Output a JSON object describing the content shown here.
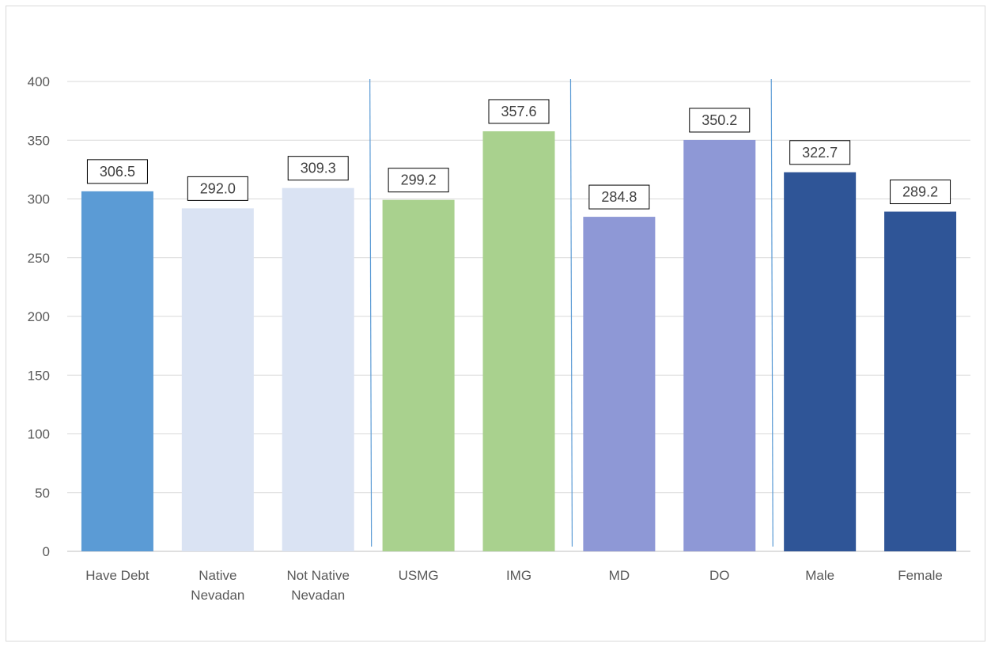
{
  "chart_data": {
    "type": "bar",
    "categories": [
      "Have Debt",
      "Native Nevadan",
      "Not Native Nevadan",
      "USMG",
      "IMG",
      "MD",
      "DO",
      "Male",
      "Female"
    ],
    "category_lines": [
      [
        "Have Debt"
      ],
      [
        "Native",
        "Nevadan"
      ],
      [
        "Not Native",
        "Nevadan"
      ],
      [
        "USMG"
      ],
      [
        "IMG"
      ],
      [
        "MD"
      ],
      [
        "DO"
      ],
      [
        "Male"
      ],
      [
        "Female"
      ]
    ],
    "values": [
      306.5,
      292.0,
      309.3,
      299.2,
      357.6,
      284.8,
      350.2,
      322.7,
      289.2
    ],
    "data_labels": [
      "306.5",
      "292.0",
      "309.3",
      "299.2",
      "357.6",
      "284.8",
      "350.2",
      "322.7",
      "289.2"
    ],
    "bar_colors": [
      "#5b9bd5",
      "#dae3f3",
      "#dae3f3",
      "#a9d18e",
      "#a9d18e",
      "#8e98d6",
      "#8e98d6",
      "#2f5597",
      "#2f5597"
    ],
    "ylim": [
      0,
      400
    ],
    "yticks": [
      0,
      50,
      100,
      150,
      200,
      250,
      300,
      350,
      400
    ],
    "ytick_labels": [
      "0",
      "50",
      "100",
      "150",
      "200",
      "250",
      "300",
      "350",
      "400"
    ],
    "group_separators_after_index": [
      2,
      4,
      6
    ],
    "separator_color": "#5b9bd5",
    "grid": true,
    "legend": "none",
    "title": "",
    "xlabel": "",
    "ylabel": ""
  }
}
